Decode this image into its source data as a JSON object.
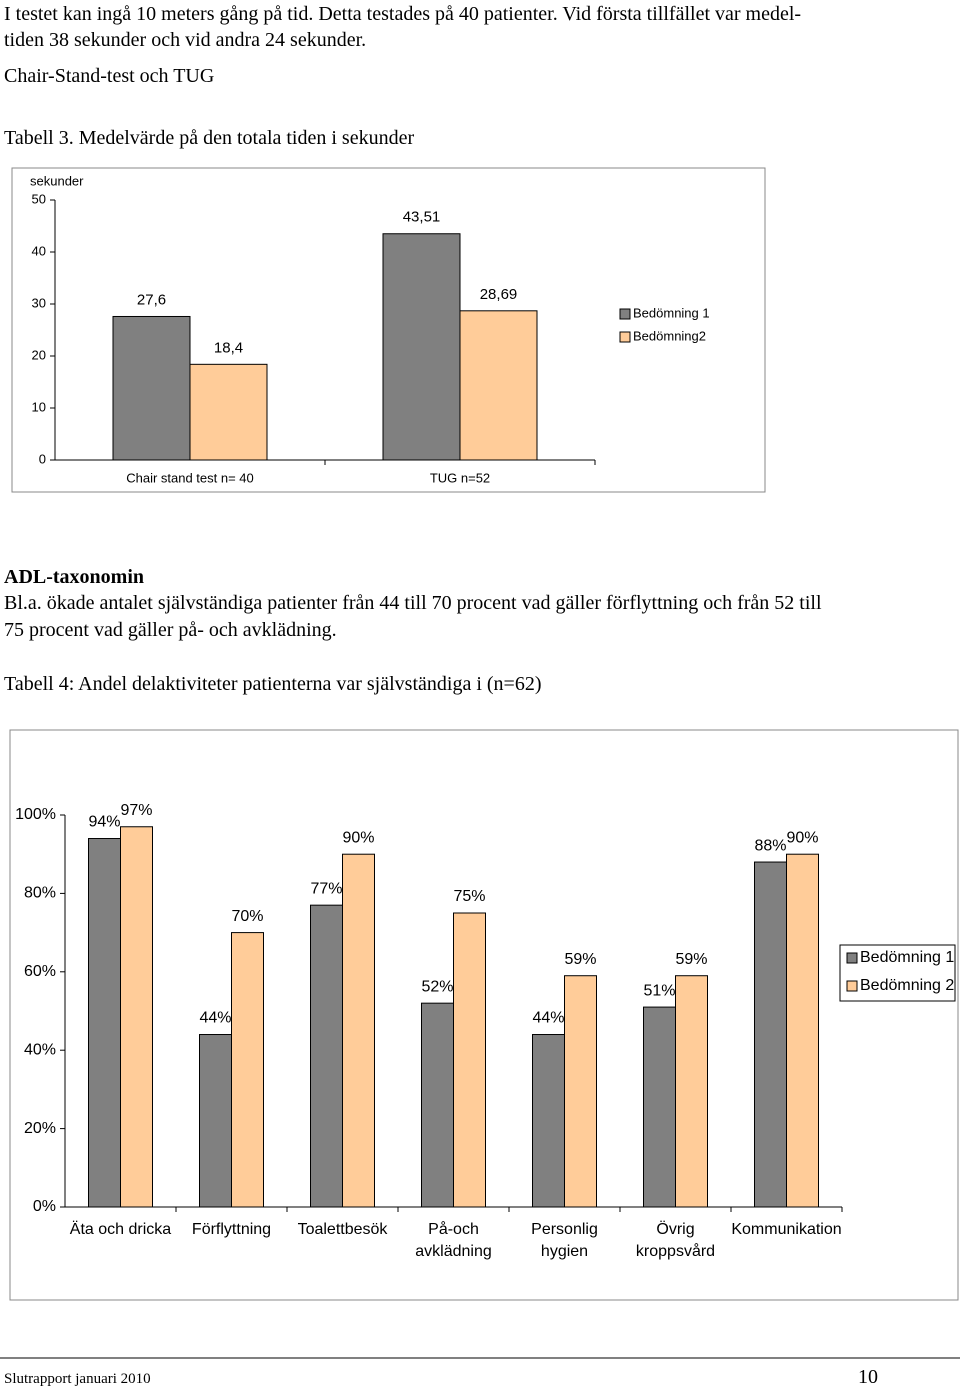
{
  "intro_lines": [
    "I testet kan ingå 10 meters gång på tid. Detta testades på 40 patienter. Vid första tillfället var medel-",
    "tiden 38 sekunder och vid andra 24 sekunder."
  ],
  "heading_1": "Chair-Stand-test och TUG",
  "caption_1": "Tabell 3. Medelvärde på den totala tiden i sekunder",
  "heading_2": "ADL-taxonomin",
  "body_lines": [
    "Bl.a. ökade antalet självständiga patienter från 44 till 70 procent vad gäller förflyttning och från 52 till",
    "75 procent vad gäller på- och avklädning."
  ],
  "caption_2": "Tabell 4: Andel delaktiviteter patienterna var självständiga i (n=62)",
  "footer": {
    "left": "Slutrapport januari 2010",
    "page": "10"
  },
  "chart_data": [
    {
      "type": "bar",
      "y_label": "sekunder",
      "categories": [
        "Chair stand test n= 40",
        "TUG n=52"
      ],
      "series": [
        {
          "name": "Bedömning 1",
          "color": "#808080",
          "values": [
            27.6,
            43.51
          ],
          "value_labels": [
            "27,6",
            "43,51"
          ]
        },
        {
          "name": "Bedömning2",
          "color": "#ffcc99",
          "values": [
            18.4,
            28.69
          ],
          "value_labels": [
            "18,4",
            "28,69"
          ]
        }
      ],
      "ylim": [
        0,
        50
      ],
      "yticks": [
        0,
        10,
        20,
        30,
        40,
        50
      ],
      "legend": "right"
    },
    {
      "type": "bar",
      "categories": [
        "Äta och dricka",
        "Förflyttning",
        "Toalettbesök",
        "På-och\navklädning",
        "Personlig\nhygien",
        "Övrig\nkroppsvård",
        "Kommunikation"
      ],
      "series": [
        {
          "name": "Bedömning 1",
          "color": "#808080",
          "values": [
            94,
            44,
            77,
            52,
            44,
            51,
            88
          ],
          "value_labels": [
            "94%",
            "44%",
            "77%",
            "52%",
            "44%",
            "51%",
            "88%"
          ]
        },
        {
          "name": "Bedömning 2",
          "color": "#ffcc99",
          "values": [
            97,
            70,
            90,
            75,
            59,
            59,
            90
          ],
          "value_labels": [
            "97%",
            "70%",
            "90%",
            "75%",
            "59%",
            "59%",
            "90%"
          ]
        }
      ],
      "ylim": [
        0,
        100
      ],
      "yticks": [
        {
          "value": 0,
          "label": "0%"
        },
        {
          "value": 20,
          "label": "20%"
        },
        {
          "value": 40,
          "label": "40%"
        },
        {
          "value": 60,
          "label": "60%"
        },
        {
          "value": 80,
          "label": "80%"
        },
        {
          "value": 100,
          "label": "100%"
        }
      ],
      "legend": "right"
    }
  ]
}
